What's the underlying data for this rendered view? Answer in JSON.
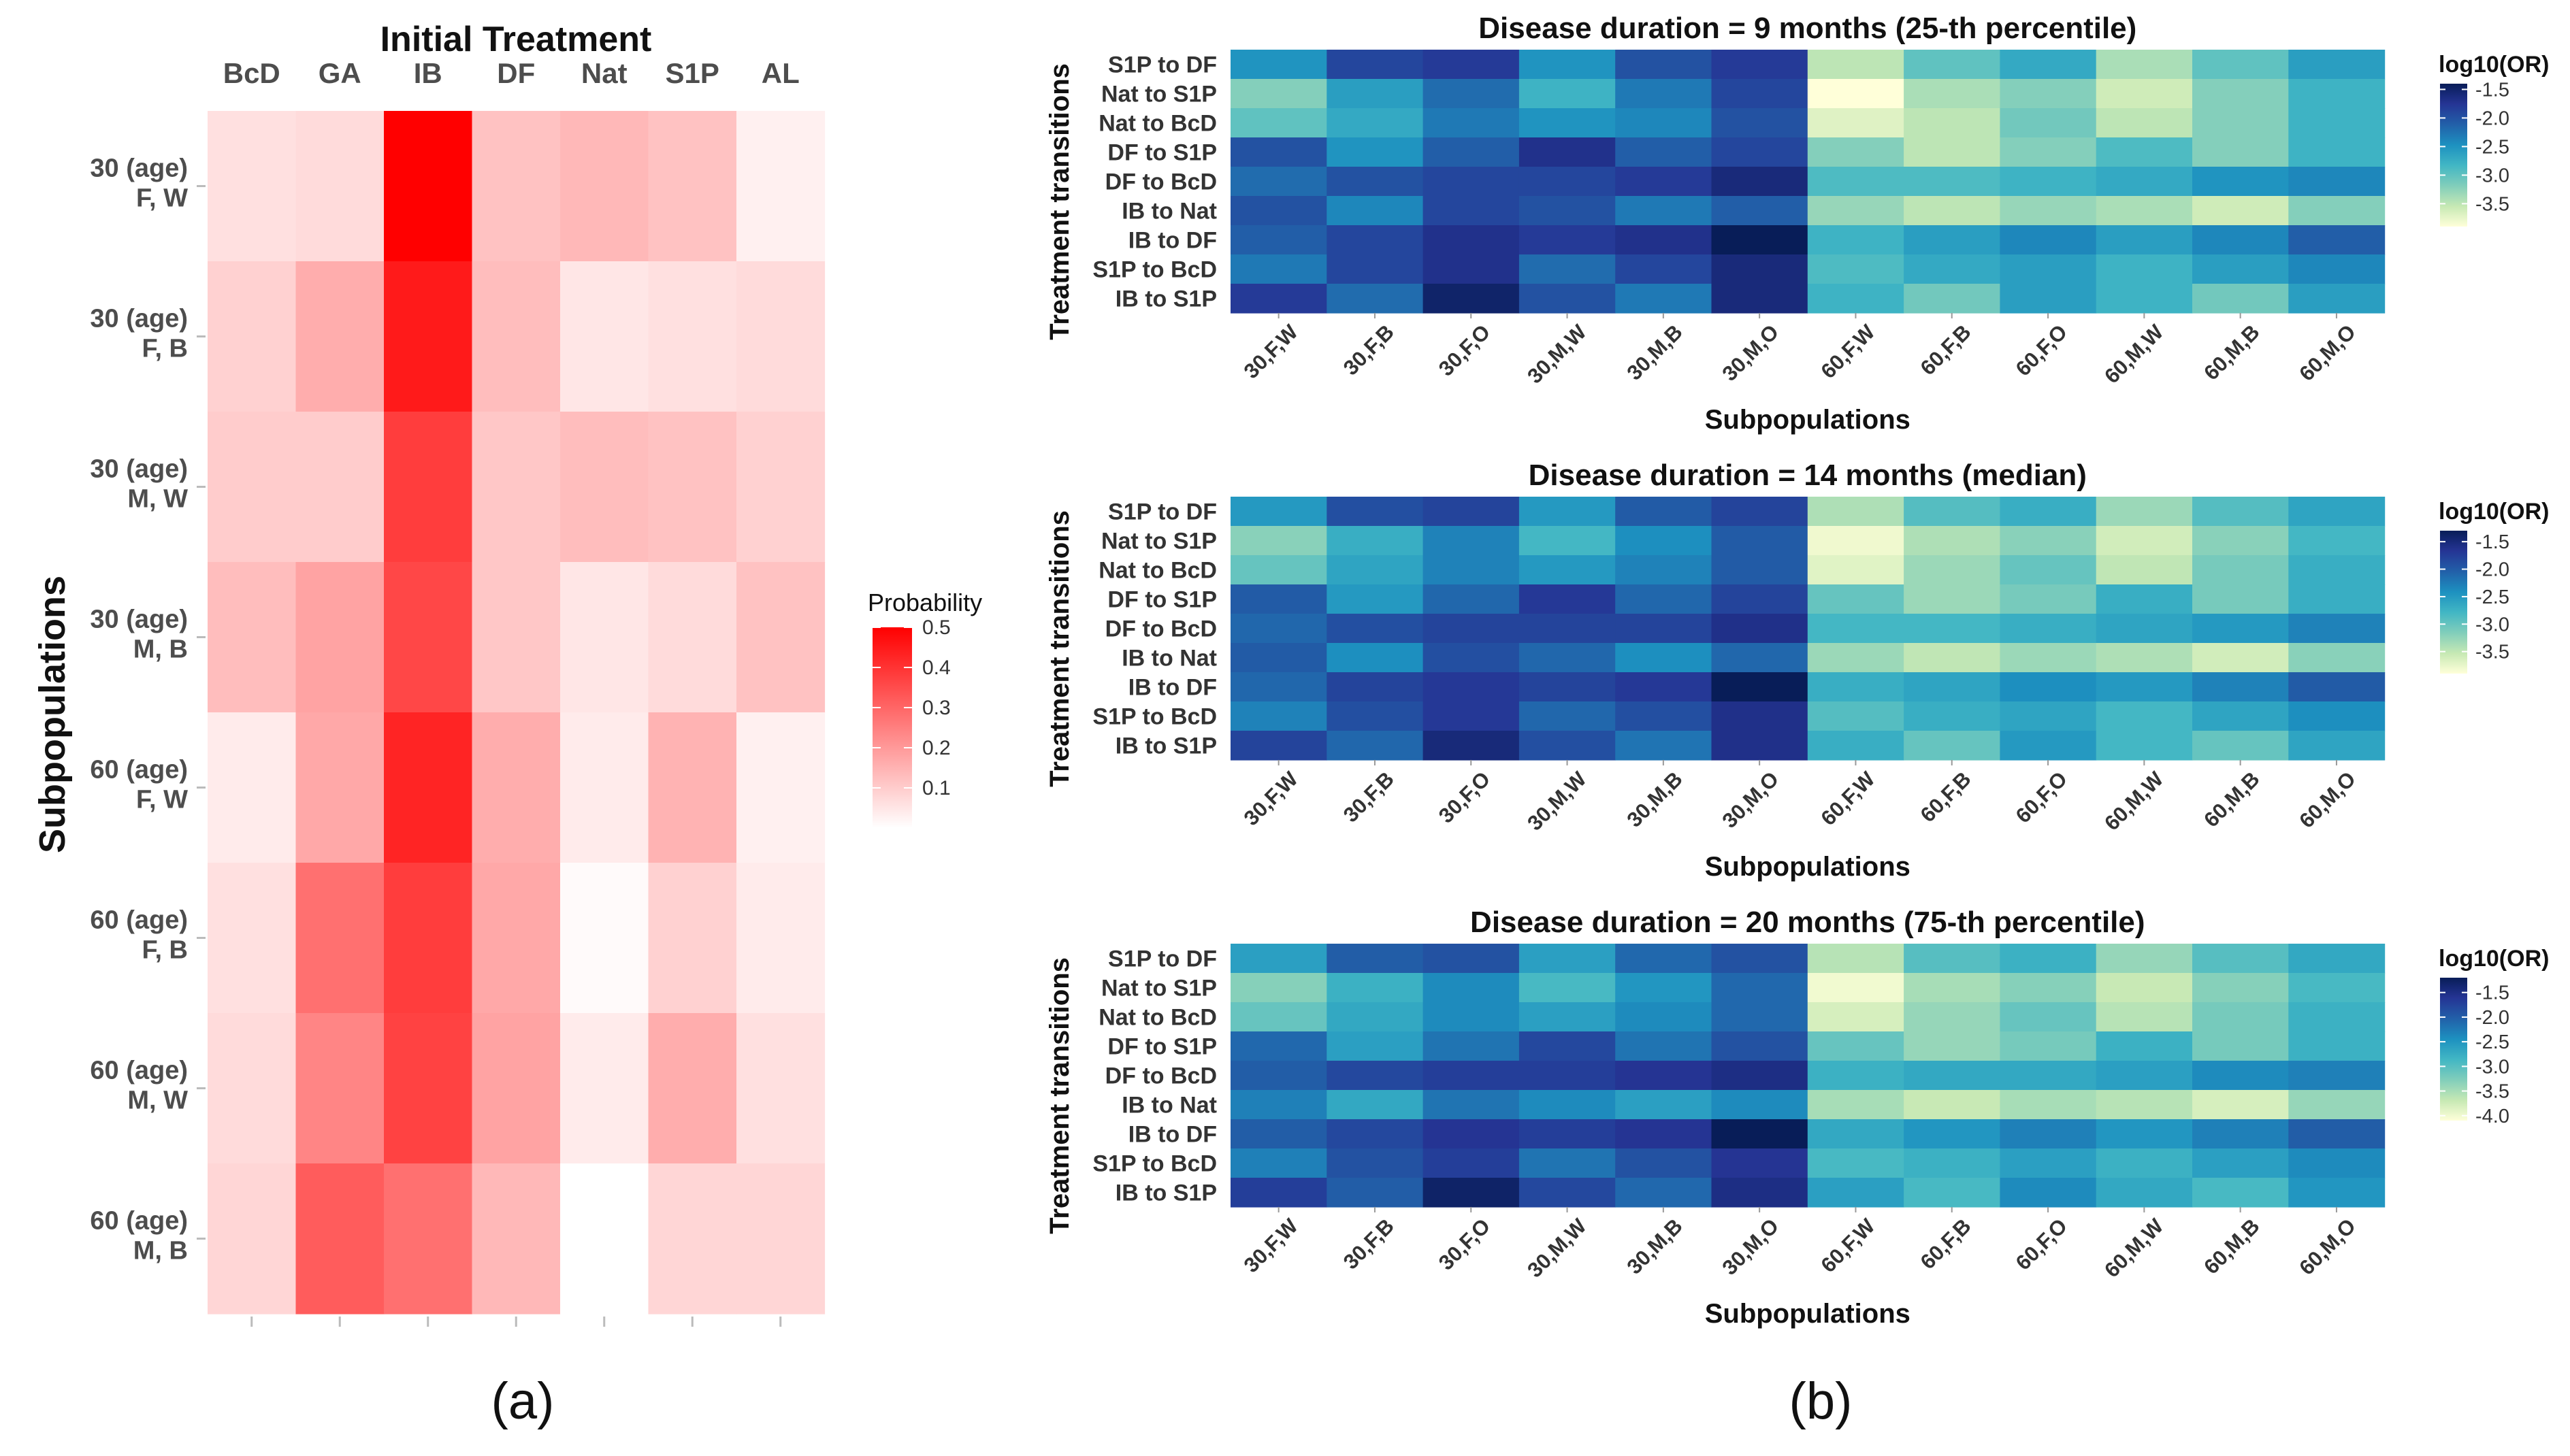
{
  "panel_labels": [
    "(a)",
    "(b)"
  ],
  "chart_data": [
    {
      "type": "heatmap",
      "title": "Initial Treatment",
      "ylabel": "Subpopulations",
      "x_categories": [
        "BcD",
        "GA",
        "IB",
        "DF",
        "Nat",
        "S1P",
        "AL"
      ],
      "y_categories": [
        [
          "30 (age)",
          "F, W"
        ],
        [
          "30 (age)",
          "F, B"
        ],
        [
          "30 (age)",
          "M, W"
        ],
        [
          "30 (age)",
          "M, B"
        ],
        [
          "60 (age)",
          "F, W"
        ],
        [
          "60 (age)",
          "F, B"
        ],
        [
          "60 (age)",
          "M, W"
        ],
        [
          "60 (age)",
          "M, B"
        ]
      ],
      "values": [
        [
          0.06,
          0.07,
          0.5,
          0.12,
          0.14,
          0.12,
          0.03
        ],
        [
          0.09,
          0.16,
          0.45,
          0.13,
          0.05,
          0.06,
          0.07
        ],
        [
          0.1,
          0.1,
          0.38,
          0.11,
          0.13,
          0.12,
          0.09
        ],
        [
          0.13,
          0.18,
          0.36,
          0.11,
          0.05,
          0.07,
          0.12
        ],
        [
          0.04,
          0.17,
          0.43,
          0.16,
          0.04,
          0.15,
          0.03
        ],
        [
          0.06,
          0.28,
          0.38,
          0.17,
          0.01,
          0.09,
          0.04
        ],
        [
          0.07,
          0.24,
          0.37,
          0.18,
          0.04,
          0.16,
          0.06
        ],
        [
          0.08,
          0.32,
          0.28,
          0.14,
          0.0,
          0.08,
          0.08
        ]
      ],
      "legend": {
        "title": "Probability",
        "ticks": [
          "0.5",
          "0.4",
          "0.3",
          "0.2",
          "0.1"
        ],
        "range": [
          0.0,
          0.5
        ],
        "position": "right"
      },
      "colors": {
        "low": "#ffffff",
        "high": "#ff0000"
      }
    },
    {
      "type": "heatmap",
      "title": "Disease duration = 9 months (25-th percentile)",
      "xlabel": "Subpopulations",
      "ylabel": "Treatment transitions",
      "x_categories": [
        "30,F,W",
        "30,F,B",
        "30,F,O",
        "30,M,W",
        "30,M,B",
        "30,M,O",
        "60,F,W",
        "60,F,B",
        "60,F,O",
        "60,M,W",
        "60,M,B",
        "60,M,O"
      ],
      "y_categories": [
        "S1P to DF",
        "Nat to S1P",
        "Nat to BcD",
        "DF to S1P",
        "DF to BcD",
        "IB to Nat",
        "IB to DF",
        "S1P to BcD",
        "IB to S1P"
      ],
      "values": [
        [
          -2.5,
          -1.9,
          -1.8,
          -2.5,
          -2.0,
          -1.8,
          -3.5,
          -3.0,
          -2.7,
          -3.4,
          -3.0,
          -2.6
        ],
        [
          -3.2,
          -2.6,
          -2.2,
          -2.8,
          -2.3,
          -1.9,
          -3.9,
          -3.4,
          -3.2,
          -3.6,
          -3.2,
          -2.8
        ],
        [
          -3.0,
          -2.7,
          -2.3,
          -2.5,
          -2.4,
          -2.0,
          -3.7,
          -3.5,
          -3.1,
          -3.5,
          -3.2,
          -2.8
        ],
        [
          -2.0,
          -2.5,
          -2.1,
          -1.7,
          -2.1,
          -1.9,
          -3.2,
          -3.5,
          -3.2,
          -2.9,
          -3.2,
          -2.8
        ],
        [
          -2.2,
          -2.0,
          -1.9,
          -1.9,
          -1.8,
          -1.6,
          -2.9,
          -2.9,
          -2.8,
          -2.7,
          -2.5,
          -2.4
        ],
        [
          -2.0,
          -2.4,
          -1.9,
          -2.0,
          -2.3,
          -2.1,
          -3.3,
          -3.5,
          -3.3,
          -3.4,
          -3.6,
          -3.2
        ],
        [
          -2.1,
          -1.9,
          -1.7,
          -1.8,
          -1.7,
          -1.4,
          -2.8,
          -2.6,
          -2.4,
          -2.6,
          -2.4,
          -2.1
        ],
        [
          -2.3,
          -1.9,
          -1.7,
          -2.2,
          -1.9,
          -1.6,
          -2.9,
          -2.7,
          -2.6,
          -2.8,
          -2.6,
          -2.4
        ],
        [
          -1.8,
          -2.2,
          -1.5,
          -2.0,
          -2.3,
          -1.6,
          -2.8,
          -3.1,
          -2.6,
          -2.8,
          -3.1,
          -2.6
        ]
      ],
      "legend": {
        "title": "log10(OR)",
        "ticks": [
          "-1.5",
          "-2.0",
          "-2.5",
          "-3.0",
          "-3.5"
        ],
        "range": [
          -1.4,
          -3.9
        ],
        "position": "right"
      }
    },
    {
      "type": "heatmap",
      "title": "Disease duration = 14 months (median)",
      "xlabel": "Subpopulations",
      "ylabel": "Treatment transitions",
      "x_categories": [
        "30,F,W",
        "30,F,B",
        "30,F,O",
        "30,M,W",
        "30,M,B",
        "30,M,O",
        "60,F,W",
        "60,F,B",
        "60,F,O",
        "60,M,W",
        "60,M,B",
        "60,M,O"
      ],
      "y_categories": [
        "S1P to DF",
        "Nat to S1P",
        "Nat to BcD",
        "DF to S1P",
        "DF to BcD",
        "IB to Nat",
        "IB to DF",
        "S1P to BcD",
        "IB to S1P"
      ],
      "values": [
        [
          -2.5,
          -1.9,
          -1.8,
          -2.5,
          -2.0,
          -1.8,
          -3.4,
          -2.9,
          -2.7,
          -3.3,
          -2.9,
          -2.6
        ],
        [
          -3.2,
          -2.7,
          -2.3,
          -2.8,
          -2.4,
          -2.0,
          -3.8,
          -3.4,
          -3.2,
          -3.6,
          -3.2,
          -2.8
        ],
        [
          -3.0,
          -2.6,
          -2.3,
          -2.5,
          -2.3,
          -2.0,
          -3.7,
          -3.3,
          -3.0,
          -3.5,
          -3.1,
          -2.7
        ],
        [
          -2.0,
          -2.5,
          -2.1,
          -1.7,
          -2.1,
          -1.8,
          -3.0,
          -3.3,
          -3.1,
          -2.7,
          -3.1,
          -2.7
        ],
        [
          -2.1,
          -1.9,
          -1.8,
          -1.8,
          -1.8,
          -1.6,
          -2.8,
          -2.8,
          -2.7,
          -2.6,
          -2.5,
          -2.3
        ],
        [
          -2.0,
          -2.4,
          -1.9,
          -2.1,
          -2.4,
          -2.1,
          -3.3,
          -3.5,
          -3.3,
          -3.4,
          -3.6,
          -3.2
        ],
        [
          -2.1,
          -1.8,
          -1.7,
          -1.8,
          -1.7,
          -1.3,
          -2.7,
          -2.6,
          -2.4,
          -2.5,
          -2.3,
          -2.0
        ],
        [
          -2.3,
          -1.9,
          -1.7,
          -2.1,
          -1.9,
          -1.6,
          -2.9,
          -2.7,
          -2.6,
          -2.8,
          -2.6,
          -2.4
        ],
        [
          -1.8,
          -2.1,
          -1.5,
          -1.9,
          -2.2,
          -1.6,
          -2.7,
          -3.0,
          -2.5,
          -2.8,
          -3.0,
          -2.6
        ]
      ],
      "legend": {
        "title": "log10(OR)",
        "ticks": [
          "-1.5",
          "-2.0",
          "-2.5",
          "-3.0",
          "-3.5"
        ],
        "range": [
          -1.3,
          -3.9
        ],
        "position": "right"
      }
    },
    {
      "type": "heatmap",
      "title": "Disease duration = 20 months (75-th percentile)",
      "xlabel": "Subpopulations",
      "ylabel": "Treatment transitions",
      "x_categories": [
        "30,F,W",
        "30,F,B",
        "30,F,O",
        "30,M,W",
        "30,M,B",
        "30,M,O",
        "60,F,W",
        "60,F,B",
        "60,F,O",
        "60,M,W",
        "60,M,B",
        "60,M,O"
      ],
      "y_categories": [
        "S1P to DF",
        "Nat to S1P",
        "Nat to BcD",
        "DF to S1P",
        "DF to BcD",
        "IB to Nat",
        "IB to DF",
        "S1P to BcD",
        "IB to S1P"
      ],
      "values": [
        [
          -2.6,
          -2.0,
          -1.9,
          -2.6,
          -2.1,
          -1.9,
          -3.6,
          -3.0,
          -2.8,
          -3.4,
          -3.0,
          -2.7
        ],
        [
          -3.3,
          -2.8,
          -2.4,
          -2.9,
          -2.5,
          -2.1,
          -4.0,
          -3.5,
          -3.3,
          -3.7,
          -3.3,
          -2.9
        ],
        [
          -3.1,
          -2.7,
          -2.4,
          -2.6,
          -2.4,
          -2.1,
          -3.8,
          -3.4,
          -3.1,
          -3.6,
          -3.2,
          -2.8
        ],
        [
          -2.1,
          -2.6,
          -2.2,
          -1.8,
          -2.2,
          -1.9,
          -3.1,
          -3.4,
          -3.2,
          -2.8,
          -3.2,
          -2.8
        ],
        [
          -2.0,
          -1.8,
          -1.7,
          -1.7,
          -1.6,
          -1.5,
          -2.8,
          -2.7,
          -2.7,
          -2.6,
          -2.4,
          -2.3
        ],
        [
          -2.3,
          -2.7,
          -2.2,
          -2.4,
          -2.6,
          -2.4,
          -3.5,
          -3.7,
          -3.5,
          -3.6,
          -3.8,
          -3.4
        ],
        [
          -2.0,
          -1.8,
          -1.6,
          -1.7,
          -1.6,
          -1.2,
          -2.7,
          -2.5,
          -2.3,
          -2.5,
          -2.3,
          -2.0
        ],
        [
          -2.3,
          -1.9,
          -1.7,
          -2.2,
          -1.9,
          -1.6,
          -2.9,
          -2.8,
          -2.6,
          -2.8,
          -2.6,
          -2.4
        ],
        [
          -1.7,
          -2.0,
          -1.3,
          -1.8,
          -2.1,
          -1.5,
          -2.6,
          -2.9,
          -2.4,
          -2.7,
          -2.9,
          -2.5
        ]
      ],
      "legend": {
        "title": "log10(OR)",
        "ticks": [
          "-1.5",
          "-2.0",
          "-2.5",
          "-3.0",
          "-3.5",
          "-4.0"
        ],
        "range": [
          -1.2,
          -4.1
        ],
        "position": "right"
      }
    }
  ]
}
